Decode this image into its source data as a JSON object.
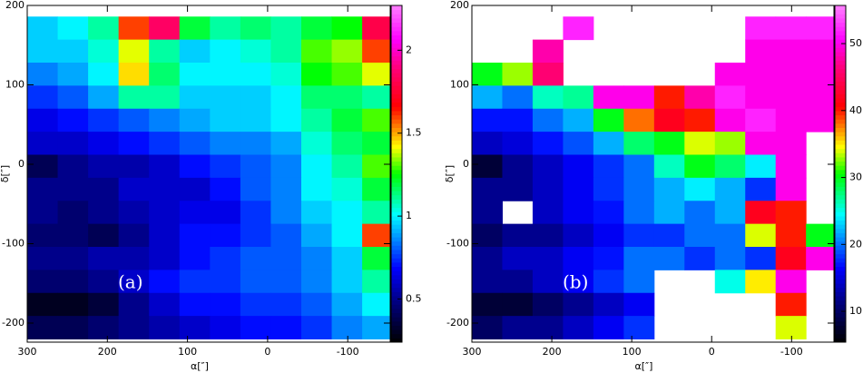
{
  "chart_data": [
    {
      "type": "heatmap",
      "annotation": "(a)",
      "xlabel": "α[″]",
      "ylabel": "δ[″]",
      "xlim": [
        300,
        -153
      ],
      "ylim": [
        -224,
        200
      ],
      "xticks": [
        300,
        200,
        100,
        0,
        -100
      ],
      "yticks": [
        200,
        100,
        0,
        -100,
        -200
      ],
      "xbins": [
        300,
        262,
        224,
        186,
        148,
        110,
        72,
        34,
        -4,
        -42,
        -80,
        -118,
        -156
      ],
      "ybins": [
        186,
        157,
        128,
        99,
        70,
        41,
        12,
        -17,
        -46,
        -75,
        -104,
        -133,
        -162,
        -191,
        -220
      ],
      "clim": [
        0.24,
        2.27
      ],
      "cticks": [
        0.5,
        1,
        1.5,
        2
      ],
      "colormap": [
        [
          0,
          "#000000"
        ],
        [
          0.12,
          "#000080"
        ],
        [
          0.22,
          "#0000ff"
        ],
        [
          0.3,
          "#0080ff"
        ],
        [
          0.38,
          "#00ffff"
        ],
        [
          0.5,
          "#00ff00"
        ],
        [
          0.58,
          "#ffff00"
        ],
        [
          0.64,
          "#ff8000"
        ],
        [
          0.7,
          "#ff0000"
        ],
        [
          0.82,
          "#ff0080"
        ],
        [
          0.9,
          "#ff00ff"
        ],
        [
          1,
          "#ff80ff"
        ]
      ],
      "values": [
        [
          0.95,
          1.0,
          1.1,
          1.6,
          1.85,
          1.2,
          1.1,
          1.15,
          1.1,
          1.2,
          1.25,
          1.8
        ],
        [
          0.95,
          0.95,
          1.05,
          1.4,
          1.1,
          0.95,
          1.0,
          1.05,
          1.1,
          1.3,
          1.35,
          1.6
        ],
        [
          0.85,
          0.9,
          1.0,
          1.45,
          1.15,
          1.0,
          1.0,
          1.0,
          1.05,
          1.25,
          1.3,
          1.4
        ],
        [
          0.75,
          0.8,
          0.9,
          1.1,
          1.1,
          0.95,
          0.95,
          0.95,
          1.0,
          1.15,
          1.15,
          1.1
        ],
        [
          0.65,
          0.7,
          0.75,
          0.8,
          0.85,
          0.9,
          0.95,
          0.95,
          1.0,
          1.1,
          1.2,
          1.3
        ],
        [
          0.6,
          0.6,
          0.65,
          0.7,
          0.75,
          0.8,
          0.85,
          0.85,
          0.9,
          1.05,
          1.15,
          1.2
        ],
        [
          0.4,
          0.5,
          0.55,
          0.55,
          0.6,
          0.7,
          0.75,
          0.8,
          0.85,
          1.0,
          1.1,
          1.3
        ],
        [
          0.5,
          0.5,
          0.5,
          0.6,
          0.6,
          0.6,
          0.7,
          0.8,
          0.85,
          1.0,
          1.05,
          1.2
        ],
        [
          0.5,
          0.45,
          0.5,
          0.55,
          0.6,
          0.65,
          0.65,
          0.75,
          0.85,
          0.95,
          1.0,
          1.1
        ],
        [
          0.45,
          0.45,
          0.4,
          0.5,
          0.6,
          0.7,
          0.7,
          0.75,
          0.8,
          0.9,
          1.0,
          1.6
        ],
        [
          0.5,
          0.5,
          0.55,
          0.55,
          0.6,
          0.7,
          0.75,
          0.8,
          0.8,
          0.85,
          0.95,
          1.2
        ],
        [
          0.45,
          0.45,
          0.5,
          0.6,
          0.7,
          0.75,
          0.75,
          0.8,
          0.8,
          0.85,
          0.95,
          1.1
        ],
        [
          0.3,
          0.3,
          0.35,
          0.5,
          0.6,
          0.7,
          0.7,
          0.75,
          0.75,
          0.8,
          0.9,
          1.0
        ],
        [
          0.4,
          0.4,
          0.45,
          0.5,
          0.55,
          0.6,
          0.65,
          0.7,
          0.7,
          0.75,
          0.85,
          0.9
        ]
      ]
    },
    {
      "type": "heatmap",
      "annotation": "(b)",
      "xlabel": "α[″]",
      "ylabel": "δ[″]",
      "xlim": [
        300,
        -153
      ],
      "ylim": [
        -224,
        200
      ],
      "xticks": [
        300,
        200,
        100,
        0,
        -100
      ],
      "yticks": [
        200,
        100,
        0,
        -100,
        -200
      ],
      "xbins": [
        300,
        262,
        224,
        186,
        148,
        110,
        72,
        34,
        -4,
        -42,
        -80,
        -118,
        -156
      ],
      "ybins": [
        186,
        157,
        128,
        99,
        70,
        41,
        12,
        -17,
        -46,
        -75,
        -104,
        -133,
        -162,
        -191,
        -220
      ],
      "clim": [
        5.4,
        55.7
      ],
      "cticks": [
        10,
        20,
        30,
        40,
        50
      ],
      "colormap": [
        [
          0,
          "#000000"
        ],
        [
          0.12,
          "#000080"
        ],
        [
          0.22,
          "#0000ff"
        ],
        [
          0.3,
          "#0080ff"
        ],
        [
          0.38,
          "#00ffff"
        ],
        [
          0.5,
          "#00ff00"
        ],
        [
          0.58,
          "#ffff00"
        ],
        [
          0.64,
          "#ff8000"
        ],
        [
          0.7,
          "#ff0000"
        ],
        [
          0.82,
          "#ff0080"
        ],
        [
          0.9,
          "#ff00ff"
        ],
        [
          1,
          "#ff80ff"
        ]
      ],
      "values": [
        [
          null,
          null,
          null,
          52,
          null,
          null,
          null,
          null,
          null,
          52,
          52,
          52
        ],
        [
          null,
          null,
          48,
          null,
          null,
          null,
          null,
          null,
          null,
          50,
          50,
          50
        ],
        [
          30,
          33,
          46,
          null,
          null,
          null,
          null,
          null,
          50,
          50,
          50,
          50
        ],
        [
          22,
          20,
          26,
          27,
          50,
          50,
          40,
          48,
          52,
          50,
          50,
          50
        ],
        [
          17,
          17,
          20,
          22,
          30,
          38,
          42,
          40,
          50,
          52,
          50,
          50
        ],
        [
          14,
          15,
          17,
          19,
          22,
          28,
          30,
          34,
          33,
          50,
          50,
          null
        ],
        [
          8,
          12,
          14,
          16,
          18,
          20,
          26,
          30,
          28,
          24,
          50,
          null
        ],
        [
          12,
          12,
          14,
          16,
          18,
          20,
          22,
          24,
          22,
          18,
          50,
          null
        ],
        [
          12,
          null,
          14,
          16,
          17,
          20,
          22,
          20,
          22,
          42,
          40,
          null
        ],
        [
          10,
          12,
          12,
          14,
          16,
          18,
          18,
          20,
          20,
          34,
          40,
          30
        ],
        [
          12,
          14,
          14,
          16,
          17,
          20,
          20,
          18,
          20,
          18,
          42,
          50
        ],
        [
          12,
          12,
          14,
          16,
          18,
          20,
          null,
          null,
          25,
          35,
          50,
          null
        ],
        [
          8,
          8,
          10,
          12,
          14,
          16,
          null,
          null,
          null,
          null,
          40,
          null
        ],
        [
          10,
          12,
          12,
          14,
          16,
          18,
          null,
          null,
          null,
          null,
          34,
          null
        ]
      ]
    }
  ]
}
